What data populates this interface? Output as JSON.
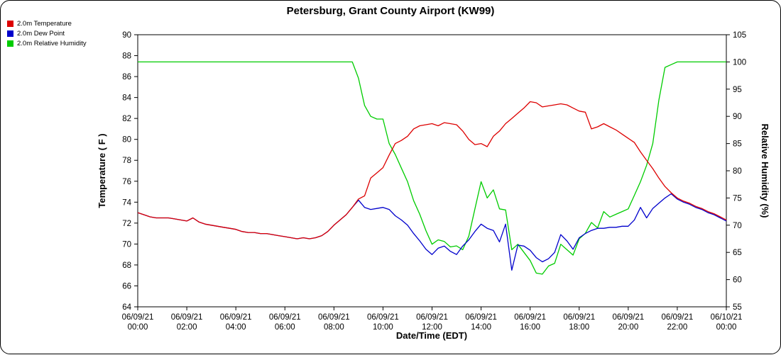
{
  "chart_data": {
    "type": "line",
    "title": "Petersburg, Grant County Airport (KW99)",
    "x_label": "Date/Time (EDT)",
    "y_left_label": "Temperature ( F )",
    "y_right_label": "Relative Humidity (%)",
    "x_min": 0,
    "x_max": 24,
    "x_start": 0,
    "x_step": 0.25,
    "y_left_min": 64,
    "y_left_max": 90,
    "y_left_step": 2,
    "y_right_min": 55,
    "y_right_max": 105,
    "y_right_step": 5,
    "x_ticks": [
      {
        "hour": 0,
        "date": "06/09/21",
        "time": "00:00"
      },
      {
        "hour": 2,
        "date": "06/09/21",
        "time": "02:00"
      },
      {
        "hour": 4,
        "date": "06/09/21",
        "time": "04:00"
      },
      {
        "hour": 6,
        "date": "06/09/21",
        "time": "06:00"
      },
      {
        "hour": 8,
        "date": "06/09/21",
        "time": "08:00"
      },
      {
        "hour": 10,
        "date": "06/09/21",
        "time": "10:00"
      },
      {
        "hour": 12,
        "date": "06/09/21",
        "time": "12:00"
      },
      {
        "hour": 14,
        "date": "06/09/21",
        "time": "14:00"
      },
      {
        "hour": 16,
        "date": "06/09/21",
        "time": "16:00"
      },
      {
        "hour": 18,
        "date": "06/09/21",
        "time": "18:00"
      },
      {
        "hour": 20,
        "date": "06/09/21",
        "time": "20:00"
      },
      {
        "hour": 22,
        "date": "06/09/21",
        "time": "22:00"
      },
      {
        "hour": 24,
        "date": "06/10/21",
        "time": "00:00"
      }
    ],
    "series": [
      {
        "name": "2.0m Temperature",
        "key": "temperature-line",
        "color": "#dd0000",
        "axis": "left",
        "values": [
          73,
          72.8,
          72.6,
          72.5,
          72.5,
          72.5,
          72.4,
          72.3,
          72.2,
          72.5,
          72.1,
          71.9,
          71.8,
          71.7,
          71.6,
          71.5,
          71.4,
          71.2,
          71.1,
          71.1,
          71,
          71,
          70.9,
          70.8,
          70.7,
          70.6,
          70.5,
          70.6,
          70.5,
          70.6,
          70.8,
          71.2,
          71.8,
          72.3,
          72.8,
          73.5,
          74.3,
          74.6,
          76.3,
          76.8,
          77.3,
          78.5,
          79.6,
          79.9,
          80.3,
          81,
          81.3,
          81.4,
          81.5,
          81.3,
          81.6,
          81.5,
          81.4,
          80.8,
          80,
          79.5,
          79.6,
          79.3,
          80.3,
          80.8,
          81.5,
          82,
          82.5,
          83,
          83.6,
          83.5,
          83.1,
          83.2,
          83.3,
          83.4,
          83.3,
          83,
          82.7,
          82.6,
          81,
          81.2,
          81.5,
          81.2,
          80.9,
          80.5,
          80.1,
          79.7,
          78.8,
          78,
          77.2,
          76.3,
          75.5,
          74.9,
          74.4,
          74.1,
          73.9,
          73.6,
          73.4,
          73.1,
          72.9,
          72.6,
          72.3
        ]
      },
      {
        "name": "2.0m Dew Point",
        "key": "dew-point-line",
        "color": "#0000cc",
        "axis": "left",
        "values": [
          73,
          72.8,
          72.6,
          72.5,
          72.5,
          72.5,
          72.4,
          72.3,
          72.2,
          72.5,
          72.1,
          71.9,
          71.8,
          71.7,
          71.6,
          71.5,
          71.4,
          71.2,
          71.1,
          71.1,
          71,
          71,
          70.9,
          70.8,
          70.7,
          70.6,
          70.5,
          70.6,
          70.5,
          70.6,
          70.8,
          71.2,
          71.8,
          72.3,
          72.8,
          73.5,
          74.2,
          73.5,
          73.3,
          73.4,
          73.5,
          73.3,
          72.7,
          72.3,
          71.8,
          71,
          70.3,
          69.5,
          69,
          69.6,
          69.8,
          69.3,
          69,
          69.8,
          70.4,
          71.2,
          71.9,
          71.5,
          71.3,
          70.2,
          71.9,
          67.5,
          69.9,
          69.8,
          69.4,
          68.7,
          68.3,
          68.6,
          69.2,
          70.9,
          70.3,
          69.5,
          70.6,
          71,
          71.3,
          71.5,
          71.5,
          71.6,
          71.6,
          71.7,
          71.7,
          72.3,
          73.5,
          72.5,
          73.4,
          73.9,
          74.4,
          74.8,
          74.3,
          74,
          73.8,
          73.5,
          73.3,
          73,
          72.8,
          72.5,
          72.2
        ]
      },
      {
        "name": "2.0m Relative Humidity",
        "key": "relative-humidity-line",
        "color": "#00cc00",
        "axis": "right",
        "values": [
          100,
          100,
          100,
          100,
          100,
          100,
          100,
          100,
          100,
          100,
          100,
          100,
          100,
          100,
          100,
          100,
          100,
          100,
          100,
          100,
          100,
          100,
          100,
          100,
          100,
          100,
          100,
          100,
          100,
          100,
          100,
          100,
          100,
          100,
          100,
          100,
          97,
          92,
          90,
          89.5,
          89.5,
          85,
          83,
          80.5,
          78,
          74.5,
          72,
          69,
          66.5,
          67.3,
          67,
          66,
          66.2,
          65.5,
          68,
          73,
          78,
          75,
          76.5,
          73,
          72.8,
          65.5,
          66.5,
          65,
          63.5,
          61.2,
          61,
          62.5,
          63,
          66.5,
          65.5,
          64.5,
          67.5,
          68.5,
          70.5,
          69.5,
          72.5,
          71.5,
          72,
          72.5,
          73,
          75.5,
          78,
          81,
          85,
          93,
          99,
          99.5,
          100,
          100,
          100,
          100,
          100,
          100,
          100,
          100,
          100
        ]
      }
    ]
  }
}
